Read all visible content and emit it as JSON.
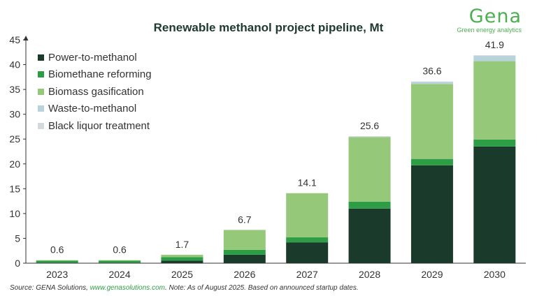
{
  "logo": {
    "word": "Gena",
    "tagline": "Green energy analytics"
  },
  "source": {
    "prefix": "Source: GENA Solutions, ",
    "link": "www.genasolutions.com",
    "suffix": ". Note: As of August 2025. Based on announced startup dates."
  },
  "chart_data": {
    "type": "bar",
    "stacked": true,
    "title": "Renewable methanol project pipeline, Mt",
    "xlabel": "",
    "ylabel": "",
    "ylim": [
      0,
      45
    ],
    "yticks": [
      "0",
      "5",
      "10",
      "15",
      "20",
      "25",
      "30",
      "35",
      "40",
      "45"
    ],
    "grid": false,
    "legend_position": "top-left",
    "categories": [
      "2023",
      "2024",
      "2025",
      "2026",
      "2027",
      "2028",
      "2029",
      "2030"
    ],
    "totals": [
      "0.6",
      "0.6",
      "1.7",
      "6.7",
      "14.1",
      "25.6",
      "36.6",
      "41.9"
    ],
    "series": [
      {
        "name": "Power-to-methanol",
        "color": "#1a3a2c",
        "values": [
          0.1,
          0.1,
          0.5,
          1.7,
          4.2,
          11.0,
          19.7,
          23.5
        ]
      },
      {
        "name": "Biomethane reforming",
        "color": "#2e9e46",
        "values": [
          0.4,
          0.4,
          0.7,
          1.0,
          1.0,
          1.4,
          1.3,
          1.4
        ]
      },
      {
        "name": "Biomass gasification",
        "color": "#96c87a",
        "values": [
          0.1,
          0.1,
          0.5,
          4.0,
          8.9,
          13.0,
          15.1,
          15.8
        ]
      },
      {
        "name": "Waste-to-methanol",
        "color": "#b9d3dd",
        "values": [
          0,
          0,
          0,
          0,
          0,
          0.1,
          0.4,
          1.1
        ]
      },
      {
        "name": "Black liquor treatment",
        "color": "#d4d9dc",
        "values": [
          0,
          0,
          0,
          0,
          0,
          0.1,
          0.1,
          0.1
        ]
      }
    ]
  }
}
